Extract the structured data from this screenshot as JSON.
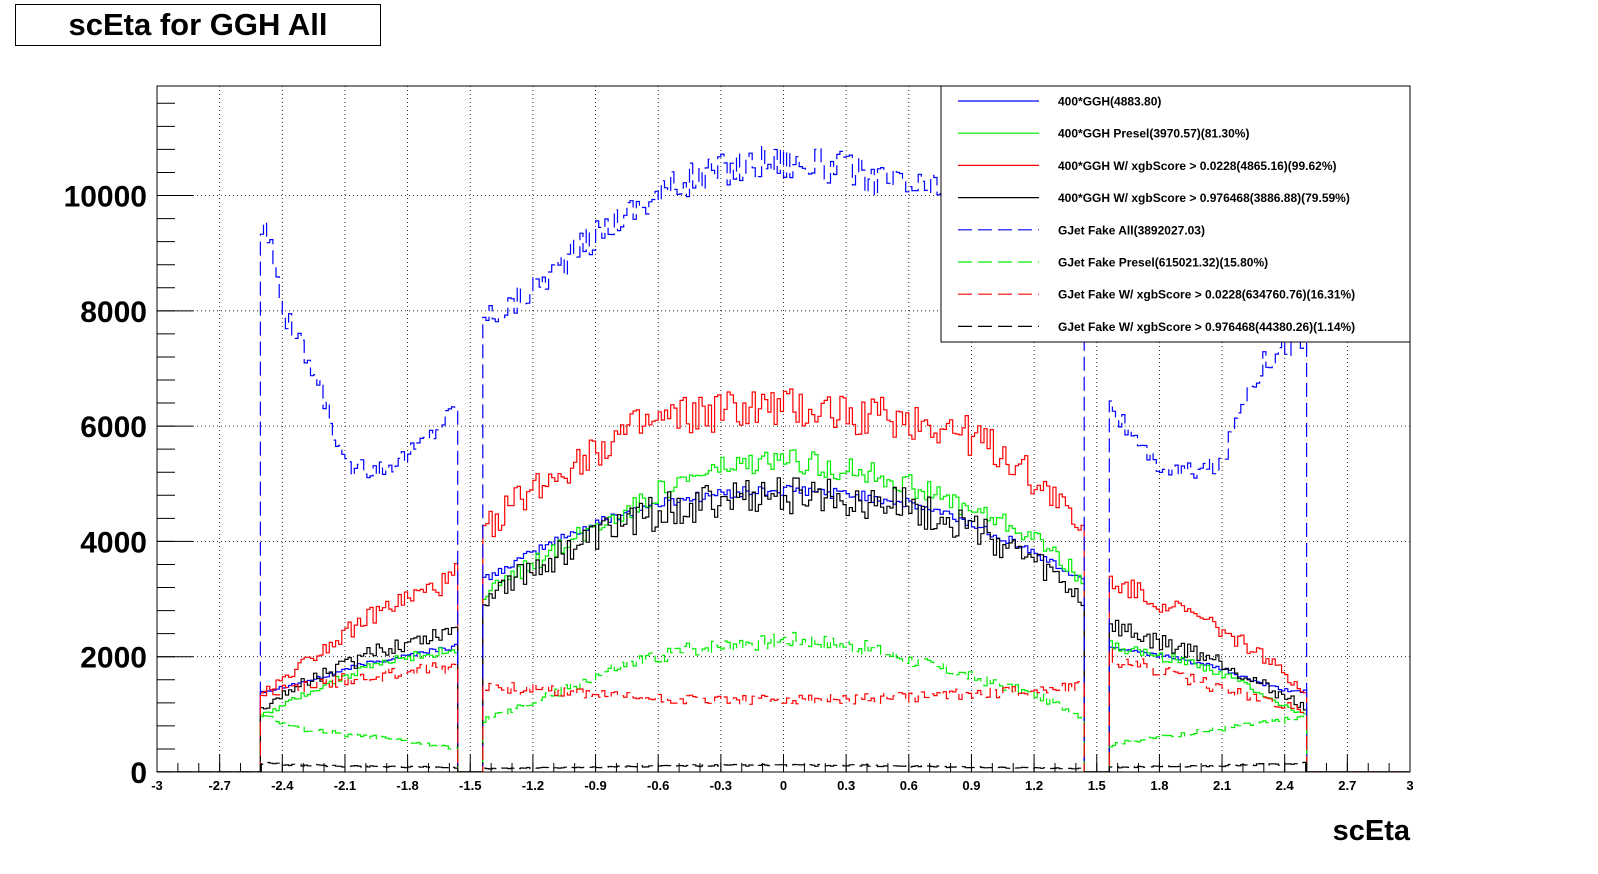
{
  "chart_data": {
    "type": "histogram",
    "title": "scEta for GGH All",
    "xlabel": "scEta",
    "ylabel": "",
    "xlim": [
      -3,
      3
    ],
    "ylim": [
      0,
      11900
    ],
    "grid": true,
    "legend_position": "top-right",
    "x_ticks": [
      "-3",
      "-2.7",
      "-2.4",
      "-2.1",
      "-1.8",
      "-1.5",
      "-1.2",
      "-0.9",
      "-0.6",
      "-0.3",
      "0",
      "0.3",
      "0.6",
      "0.9",
      "1.2",
      "1.5",
      "1.8",
      "2.1",
      "2.4",
      "2.7",
      "3"
    ],
    "y_ticks": [
      "0",
      "2000",
      "4000",
      "6000",
      "8000",
      "10000"
    ],
    "profile_x": [
      -2.5,
      -2.45,
      -2.4,
      -2.35,
      -2.3,
      -2.2,
      -2.1,
      -2.0,
      -1.9,
      -1.8,
      -1.7,
      -1.6,
      -1.566,
      -1.444,
      -1.4,
      -1.3,
      -1.2,
      -1.1,
      -1.0,
      -0.9,
      -0.8,
      -0.7,
      -0.6,
      -0.5,
      -0.4,
      -0.3,
      -0.2,
      -0.1,
      0.0,
      0.1,
      0.2,
      0.3,
      0.4,
      0.5,
      0.6,
      0.7,
      0.8,
      0.9,
      1.0,
      1.1,
      1.2,
      1.3,
      1.444,
      1.566,
      1.6,
      1.7,
      1.8,
      1.9,
      2.0,
      2.1,
      2.2,
      2.3,
      2.4,
      2.5
    ],
    "series": [
      {
        "name": "400*GGH(4883.80)",
        "color": "#0000ff",
        "dash": "solid",
        "jitter": 0.02,
        "values": [
          1400,
          1420,
          1480,
          1520,
          1560,
          1650,
          1780,
          1880,
          1950,
          2020,
          2100,
          2150,
          2200,
          3300,
          3400,
          3600,
          3800,
          4000,
          4150,
          4300,
          4450,
          4550,
          4650,
          4720,
          4780,
          4820,
          4850,
          4870,
          4880,
          4870,
          4850,
          4820,
          4780,
          4720,
          4650,
          4550,
          4450,
          4300,
          4150,
          4000,
          3800,
          3600,
          3300,
          2200,
          2150,
          2100,
          2020,
          1950,
          1880,
          1780,
          1650,
          1520,
          1420,
          1400
        ]
      },
      {
        "name": "400*GGH Presel(3970.57)(81.30%)",
        "color": "#00ee00",
        "dash": "solid",
        "jitter": 0.04,
        "values": [
          1000,
          1050,
          1150,
          1250,
          1350,
          1500,
          1650,
          1800,
          1900,
          2000,
          2050,
          2100,
          2100,
          3000,
          3150,
          3400,
          3600,
          3850,
          4050,
          4250,
          4450,
          4650,
          4850,
          5000,
          5150,
          5250,
          5300,
          5350,
          5400,
          5380,
          5320,
          5260,
          5200,
          5100,
          4980,
          4850,
          4700,
          4550,
          4400,
          4250,
          4050,
          3800,
          3300,
          2200,
          2150,
          2100,
          2000,
          1950,
          1850,
          1700,
          1550,
          1350,
          1150,
          1000
        ]
      },
      {
        "name": "400*GGH W/ xgbScore > 0.0228(4865.16)(99.62%)",
        "color": "#ff0000",
        "dash": "solid",
        "jitter": 0.06,
        "values": [
          1400,
          1450,
          1600,
          1750,
          1900,
          2150,
          2400,
          2650,
          2850,
          3000,
          3150,
          3300,
          3450,
          4100,
          4300,
          4650,
          4900,
          5150,
          5400,
          5600,
          5800,
          5950,
          6050,
          6150,
          6200,
          6250,
          6300,
          6300,
          6280,
          6280,
          6270,
          6250,
          6200,
          6150,
          6100,
          6050,
          5950,
          5800,
          5600,
          5400,
          5100,
          4800,
          4100,
          3300,
          3250,
          3100,
          2950,
          2800,
          2650,
          2450,
          2250,
          2000,
          1700,
          1400
        ]
      },
      {
        "name": "400*GGH W/ xgbScore > 0.976468(3886.88)(79.59%)",
        "color": "#000000",
        "dash": "solid",
        "jitter": 0.07,
        "values": [
          1150,
          1200,
          1300,
          1450,
          1550,
          1700,
          1850,
          2000,
          2150,
          2250,
          2350,
          2450,
          2500,
          3000,
          3150,
          3350,
          3500,
          3700,
          3900,
          4050,
          4250,
          4400,
          4500,
          4600,
          4650,
          4700,
          4750,
          4780,
          4800,
          4800,
          4790,
          4750,
          4700,
          4650,
          4600,
          4500,
          4400,
          4250,
          4050,
          3850,
          3650,
          3400,
          2950,
          2550,
          2500,
          2350,
          2250,
          2150,
          2050,
          1900,
          1700,
          1500,
          1300,
          1150
        ]
      },
      {
        "name": "GJet Fake All(3892027.03)",
        "color": "#0000ff",
        "dash": "long",
        "jitter": 0.03,
        "values": [
          9500,
          9200,
          8100,
          7600,
          7300,
          6500,
          5300,
          5250,
          5300,
          5500,
          5800,
          6200,
          6400,
          7800,
          7950,
          8100,
          8400,
          8700,
          9000,
          9300,
          9600,
          9800,
          10000,
          10200,
          10300,
          10450,
          10500,
          10600,
          10600,
          10550,
          10500,
          10450,
          10350,
          10250,
          10150,
          10100,
          10000,
          9800,
          9500,
          9200,
          8900,
          8600,
          7800,
          6500,
          6200,
          5600,
          5300,
          5200,
          5250,
          5300,
          6500,
          7100,
          7400,
          7500
        ]
      },
      {
        "name": "GJet Fake Presel(615021.32)(15.80%)",
        "color": "#00ee00",
        "dash": "long",
        "jitter": 0.06,
        "values": [
          1000,
          950,
          850,
          800,
          750,
          700,
          650,
          620,
          580,
          530,
          480,
          420,
          400,
          900,
          950,
          1050,
          1200,
          1350,
          1500,
          1650,
          1800,
          1900,
          2000,
          2100,
          2150,
          2200,
          2250,
          2250,
          2300,
          2300,
          2250,
          2200,
          2150,
          2050,
          1950,
          1850,
          1750,
          1650,
          1550,
          1450,
          1350,
          1200,
          950,
          450,
          500,
          550,
          600,
          650,
          700,
          750,
          800,
          850,
          900,
          950
        ]
      },
      {
        "name": "GJet Fake W/ xgbScore > 0.0228(634760.76)(16.31%)",
        "color": "#ff0000",
        "dash": "long",
        "jitter": 0.07,
        "values": [
          1400,
          1400,
          1420,
          1450,
          1500,
          1550,
          1600,
          1650,
          1700,
          1750,
          1800,
          1800,
          1900,
          1500,
          1500,
          1450,
          1450,
          1400,
          1380,
          1350,
          1320,
          1300,
          1280,
          1270,
          1260,
          1250,
          1250,
          1250,
          1250,
          1250,
          1250,
          1260,
          1270,
          1280,
          1300,
          1320,
          1340,
          1360,
          1380,
          1400,
          1420,
          1450,
          1500,
          2000,
          1950,
          1850,
          1750,
          1650,
          1550,
          1450,
          1350,
          1250,
          1150,
          1050
        ]
      },
      {
        "name": "GJet Fake W/ xgbScore > 0.976468(44380.26)(1.14%)",
        "color": "#000000",
        "dash": "long",
        "jitter": 0.15,
        "values": [
          150,
          140,
          130,
          120,
          120,
          110,
          100,
          100,
          95,
          90,
          85,
          80,
          80,
          60,
          60,
          65,
          70,
          75,
          80,
          85,
          90,
          95,
          100,
          105,
          110,
          110,
          115,
          115,
          115,
          115,
          115,
          110,
          110,
          105,
          100,
          95,
          90,
          85,
          80,
          75,
          70,
          65,
          60,
          80,
          85,
          90,
          95,
          100,
          105,
          110,
          120,
          130,
          140,
          150
        ]
      }
    ]
  }
}
